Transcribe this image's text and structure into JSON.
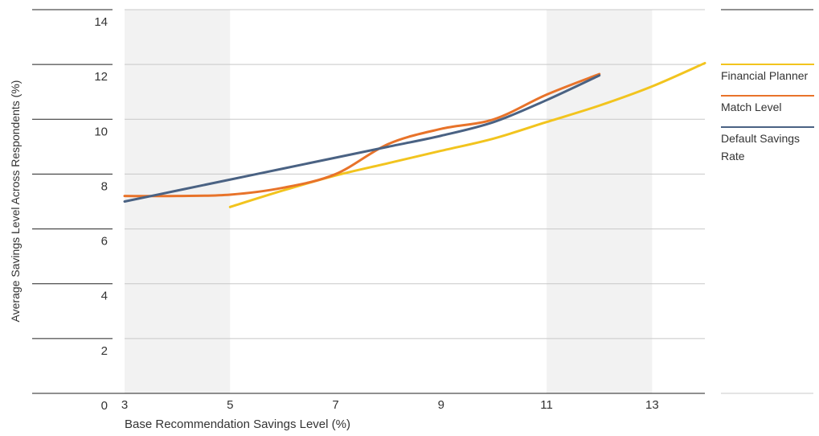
{
  "chart_data": {
    "type": "line",
    "x_label": "Base Recommendation Savings Level (%)",
    "y_label": "Average Savings Level Across Respondents (%)",
    "xlim": [
      3,
      14
    ],
    "xticks": [
      3,
      5,
      7,
      9,
      11,
      13
    ],
    "ylim": [
      0,
      14
    ],
    "yticks": [
      0,
      2,
      4,
      6,
      8,
      10,
      12,
      14
    ],
    "grid": true,
    "legend": "right",
    "series": [
      {
        "name": "Financial Planner",
        "color": "#f2c41e",
        "x": [
          5,
          6,
          7,
          8,
          9,
          10,
          11,
          12,
          13,
          14
        ],
        "values": [
          6.8,
          7.4,
          7.95,
          8.4,
          8.85,
          9.3,
          9.9,
          10.5,
          11.2,
          12.05
        ]
      },
      {
        "name": "Match Level",
        "color": "#e8732a",
        "x": [
          3,
          4,
          5,
          6,
          7,
          8,
          9,
          10,
          11,
          12
        ],
        "values": [
          7.2,
          7.2,
          7.25,
          7.5,
          8.0,
          9.1,
          9.65,
          10.0,
          10.9,
          11.65
        ]
      },
      {
        "name": "Default Savings Rate",
        "color": "#4a6283",
        "x": [
          3,
          4,
          5,
          6,
          7,
          8,
          9,
          10,
          11,
          12
        ],
        "values": [
          7.0,
          7.4,
          7.8,
          8.2,
          8.6,
          9.0,
          9.4,
          9.9,
          10.7,
          11.6
        ]
      }
    ]
  }
}
